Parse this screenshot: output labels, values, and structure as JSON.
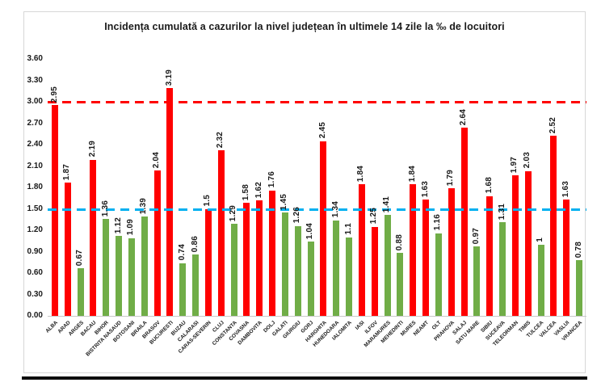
{
  "chart_data": {
    "type": "bar",
    "title": "Incidența cumulată a cazurilor la nivel județean în ultimele 14 zile la ‰ de locuitori",
    "xlabel": "",
    "ylabel": "",
    "ylim": [
      0,
      3.6
    ],
    "ytick_step": 0.3,
    "yticks": [
      "0.00",
      "0.30",
      "0.60",
      "0.90",
      "1.20",
      "1.50",
      "1.80",
      "2.10",
      "2.40",
      "2.70",
      "3.00",
      "3.30",
      "3.60"
    ],
    "grid": "off",
    "legend": "none",
    "categories": [
      "ALBA",
      "ARAD",
      "ARGES",
      "BACAU",
      "BIHOR",
      "BISTRITA NASAUD",
      "BOTOSANI",
      "BRAILA",
      "BRASOV",
      "BUCURESTI",
      "BUZAU",
      "CALARASI",
      "CARAS-SEVERIN",
      "CLUJ",
      "CONSTANTA",
      "COVASNA",
      "DAMBOVITA",
      "DOLJ",
      "GALATI",
      "GIURGIU",
      "GORJ",
      "HARGHITA",
      "HUNEDOARA",
      "IALOMITA",
      "IASI",
      "ILFOV",
      "MARAMURES",
      "MEHEDINTI",
      "MURES",
      "NEAMT",
      "OLT",
      "PRAHOVA",
      "SALAJ",
      "SATU MARE",
      "SIBIU",
      "SUCEAVA",
      "TELEORMAN",
      "TIMIS",
      "TULCEA",
      "VALCEA",
      "VASLUI",
      "VRANCEA"
    ],
    "values": [
      2.95,
      1.87,
      0.67,
      2.19,
      1.36,
      1.12,
      1.09,
      1.39,
      2.04,
      3.19,
      0.74,
      0.86,
      1.5,
      2.32,
      1.29,
      1.58,
      1.62,
      1.76,
      1.45,
      1.26,
      1.04,
      2.45,
      1.34,
      1.1,
      1.84,
      1.25,
      1.41,
      0.88,
      1.84,
      1.63,
      1.16,
      1.79,
      2.64,
      0.97,
      1.68,
      1.31,
      1.97,
      2.03,
      1,
      2.52,
      1.63,
      0.78
    ],
    "value_labels": [
      "2.95",
      "1.87",
      "0.67",
      "2.19",
      "1.36",
      "1.12",
      "1.09",
      "1.39",
      "2.04",
      "3.19",
      "0.74",
      "0.86",
      "1.5",
      "2.32",
      "1.29",
      "1.58",
      "1.62",
      "1.76",
      "1.45",
      "1.26",
      "1.04",
      "2.45",
      "1.34",
      "1.1",
      "1.84",
      "1.25",
      "1.41",
      "0.88",
      "1.84",
      "1.63",
      "1.16",
      "1.79",
      "2.64",
      "0.97",
      "1.68",
      "1.31",
      "1.97",
      "2.03",
      "1",
      "2.52",
      "1.63",
      "0.78"
    ],
    "bar_colors": [
      "red",
      "red",
      "green",
      "red",
      "green",
      "green",
      "green",
      "green",
      "red",
      "red",
      "green",
      "green",
      "red",
      "red",
      "green",
      "red",
      "red",
      "red",
      "green",
      "green",
      "green",
      "red",
      "green",
      "green",
      "red",
      "red",
      "green",
      "green",
      "red",
      "red",
      "green",
      "red",
      "red",
      "green",
      "red",
      "green",
      "red",
      "red",
      "green",
      "red",
      "red",
      "green"
    ],
    "color_map": {
      "red": "#ff0000",
      "green": "#70ad47"
    },
    "reference_lines": [
      {
        "value": 3.0,
        "color": "#ff0000",
        "style": "dashed"
      },
      {
        "value": 1.5,
        "color": "#00b0f0",
        "style": "dashed"
      }
    ]
  },
  "colors": {
    "background": "#ffffff",
    "chart_border": "#d7d7d7",
    "text": "#1a1a1a",
    "bottom_rule": "#0d0d0d"
  }
}
